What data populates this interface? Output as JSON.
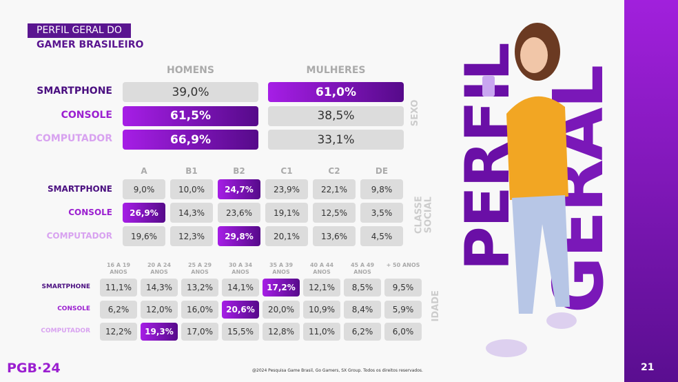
{
  "title": {
    "line1": "PERFIL GERAL DO",
    "line2": "GAMER BRASILEIRO"
  },
  "colors": {
    "smartphone": "#4a0f80",
    "console": "#9b1fd0",
    "computador": "#d8a2f0",
    "accent": "#6a0fa6"
  },
  "sexo": {
    "side_label": "SEXO",
    "columns": [
      "HOMENS",
      "MULHERES"
    ],
    "rows": [
      {
        "label": "SMARTPHONE",
        "values": [
          "39,0%",
          "61,0%"
        ],
        "highlight": 1
      },
      {
        "label": "CONSOLE",
        "values": [
          "61,5%",
          "38,5%"
        ],
        "highlight": 0
      },
      {
        "label": "COMPUTADOR",
        "values": [
          "66,9%",
          "33,1%"
        ],
        "highlight": 0
      }
    ]
  },
  "classe": {
    "side_label": "CLASSE SOCIAL",
    "columns": [
      "A",
      "B1",
      "B2",
      "C1",
      "C2",
      "DE"
    ],
    "rows": [
      {
        "label": "SMARTPHONE",
        "values": [
          "9,0%",
          "10,0%",
          "24,7%",
          "23,9%",
          "22,1%",
          "9,8%"
        ],
        "highlight": 2
      },
      {
        "label": "CONSOLE",
        "values": [
          "26,9%",
          "14,3%",
          "23,6%",
          "19,1%",
          "12,5%",
          "3,5%"
        ],
        "highlight": 0
      },
      {
        "label": "COMPUTADOR",
        "values": [
          "19,6%",
          "12,3%",
          "29,8%",
          "20,1%",
          "13,6%",
          "4,5%"
        ],
        "highlight": 2
      }
    ]
  },
  "idade": {
    "side_label": "IDADE",
    "columns": [
      "16 A 19 ANOS",
      "20 A 24 ANOS",
      "25 A 29 ANOS",
      "30 A 34 ANOS",
      "35 A 39 ANOS",
      "40 A 44 ANOS",
      "45 A 49 ANOS",
      "+ 50 ANOS"
    ],
    "rows": [
      {
        "label": "SMARTPHONE",
        "values": [
          "11,1%",
          "14,3%",
          "13,2%",
          "14,1%",
          "17,2%",
          "12,1%",
          "8,5%",
          "9,5%"
        ],
        "highlight": 4
      },
      {
        "label": "CONSOLE",
        "values": [
          "6,2%",
          "12,0%",
          "16,0%",
          "20,6%",
          "20,0%",
          "10,9%",
          "8,4%",
          "5,9%"
        ],
        "highlight": 3
      },
      {
        "label": "COMPUTADOR",
        "values": [
          "12,2%",
          "19,3%",
          "17,0%",
          "15,5%",
          "12,8%",
          "11,0%",
          "6,2%",
          "6,0%"
        ],
        "highlight": 1
      }
    ]
  },
  "big_title": {
    "word1": "PERFIL",
    "word2": "GERAL"
  },
  "footer": {
    "logo": "PGB·24",
    "copyright": "@2024 Pesquisa Game Brasil, Go Gamers, SX Group. Todos os direitos reservados.",
    "page": "21"
  }
}
